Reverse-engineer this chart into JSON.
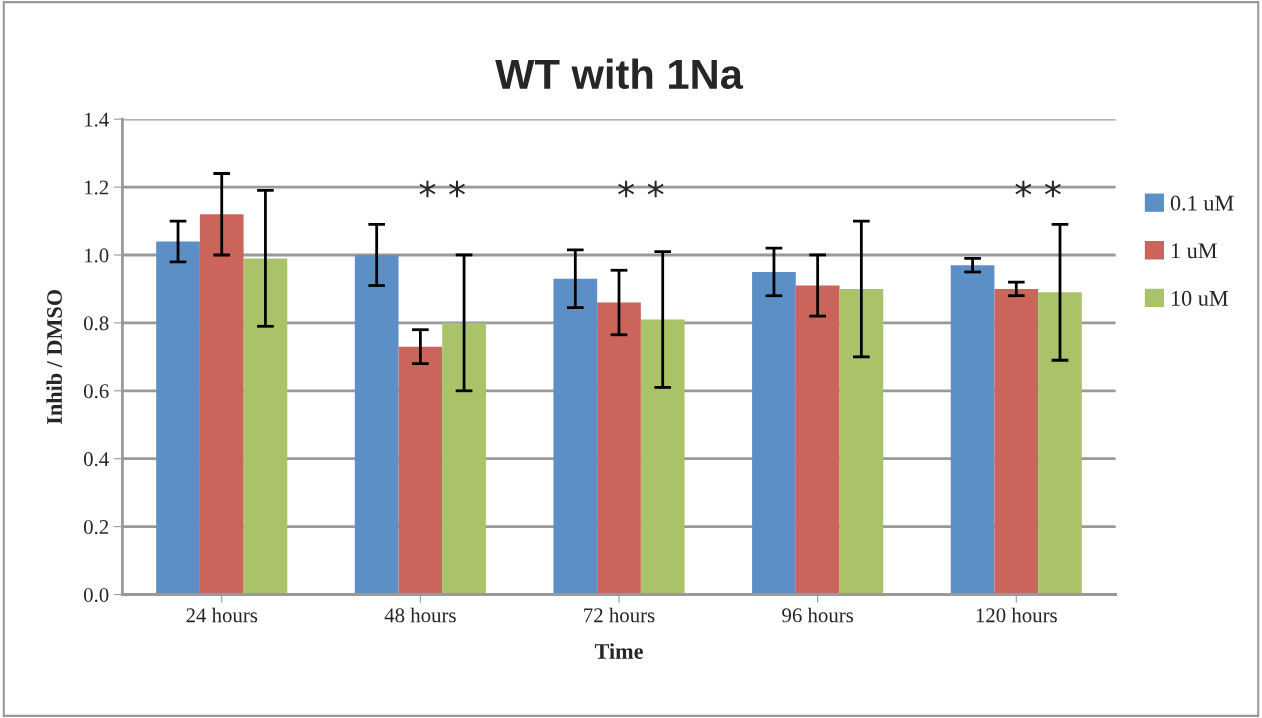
{
  "chart_data": {
    "type": "bar",
    "title": "WT with 1Na",
    "xlabel": "Time",
    "ylabel": "Inhib / DMSO",
    "categories": [
      "24 hours",
      "48 hours",
      "72 hours",
      "96 hours",
      "120 hours"
    ],
    "series": [
      {
        "name": "0.1 uM",
        "color": "#5b8fc5",
        "values": [
          1.04,
          1.0,
          0.93,
          0.95,
          0.97
        ],
        "errors": [
          0.06,
          0.09,
          0.085,
          0.07,
          0.02
        ]
      },
      {
        "name": "1 uM",
        "color": "#cb655c",
        "values": [
          1.12,
          0.73,
          0.86,
          0.91,
          0.9
        ],
        "errors": [
          0.12,
          0.05,
          0.095,
          0.09,
          0.02
        ]
      },
      {
        "name": "10 uM",
        "color": "#aac268",
        "values": [
          0.99,
          0.8,
          0.81,
          0.9,
          0.89
        ],
        "errors": [
          0.2,
          0.2,
          0.2,
          0.2,
          0.2
        ]
      }
    ],
    "ylim": [
      0,
      1.4
    ],
    "yticks": [
      {
        "value": 0,
        "label": "0.0"
      },
      0.2,
      0.4,
      0.6,
      0.8,
      {
        "value": 1.0,
        "label": "1.0"
      },
      1.2,
      1.4
    ],
    "grid": "y",
    "legend": "right",
    "annotations": [
      "* *",
      "* *",
      "* *"
    ]
  }
}
